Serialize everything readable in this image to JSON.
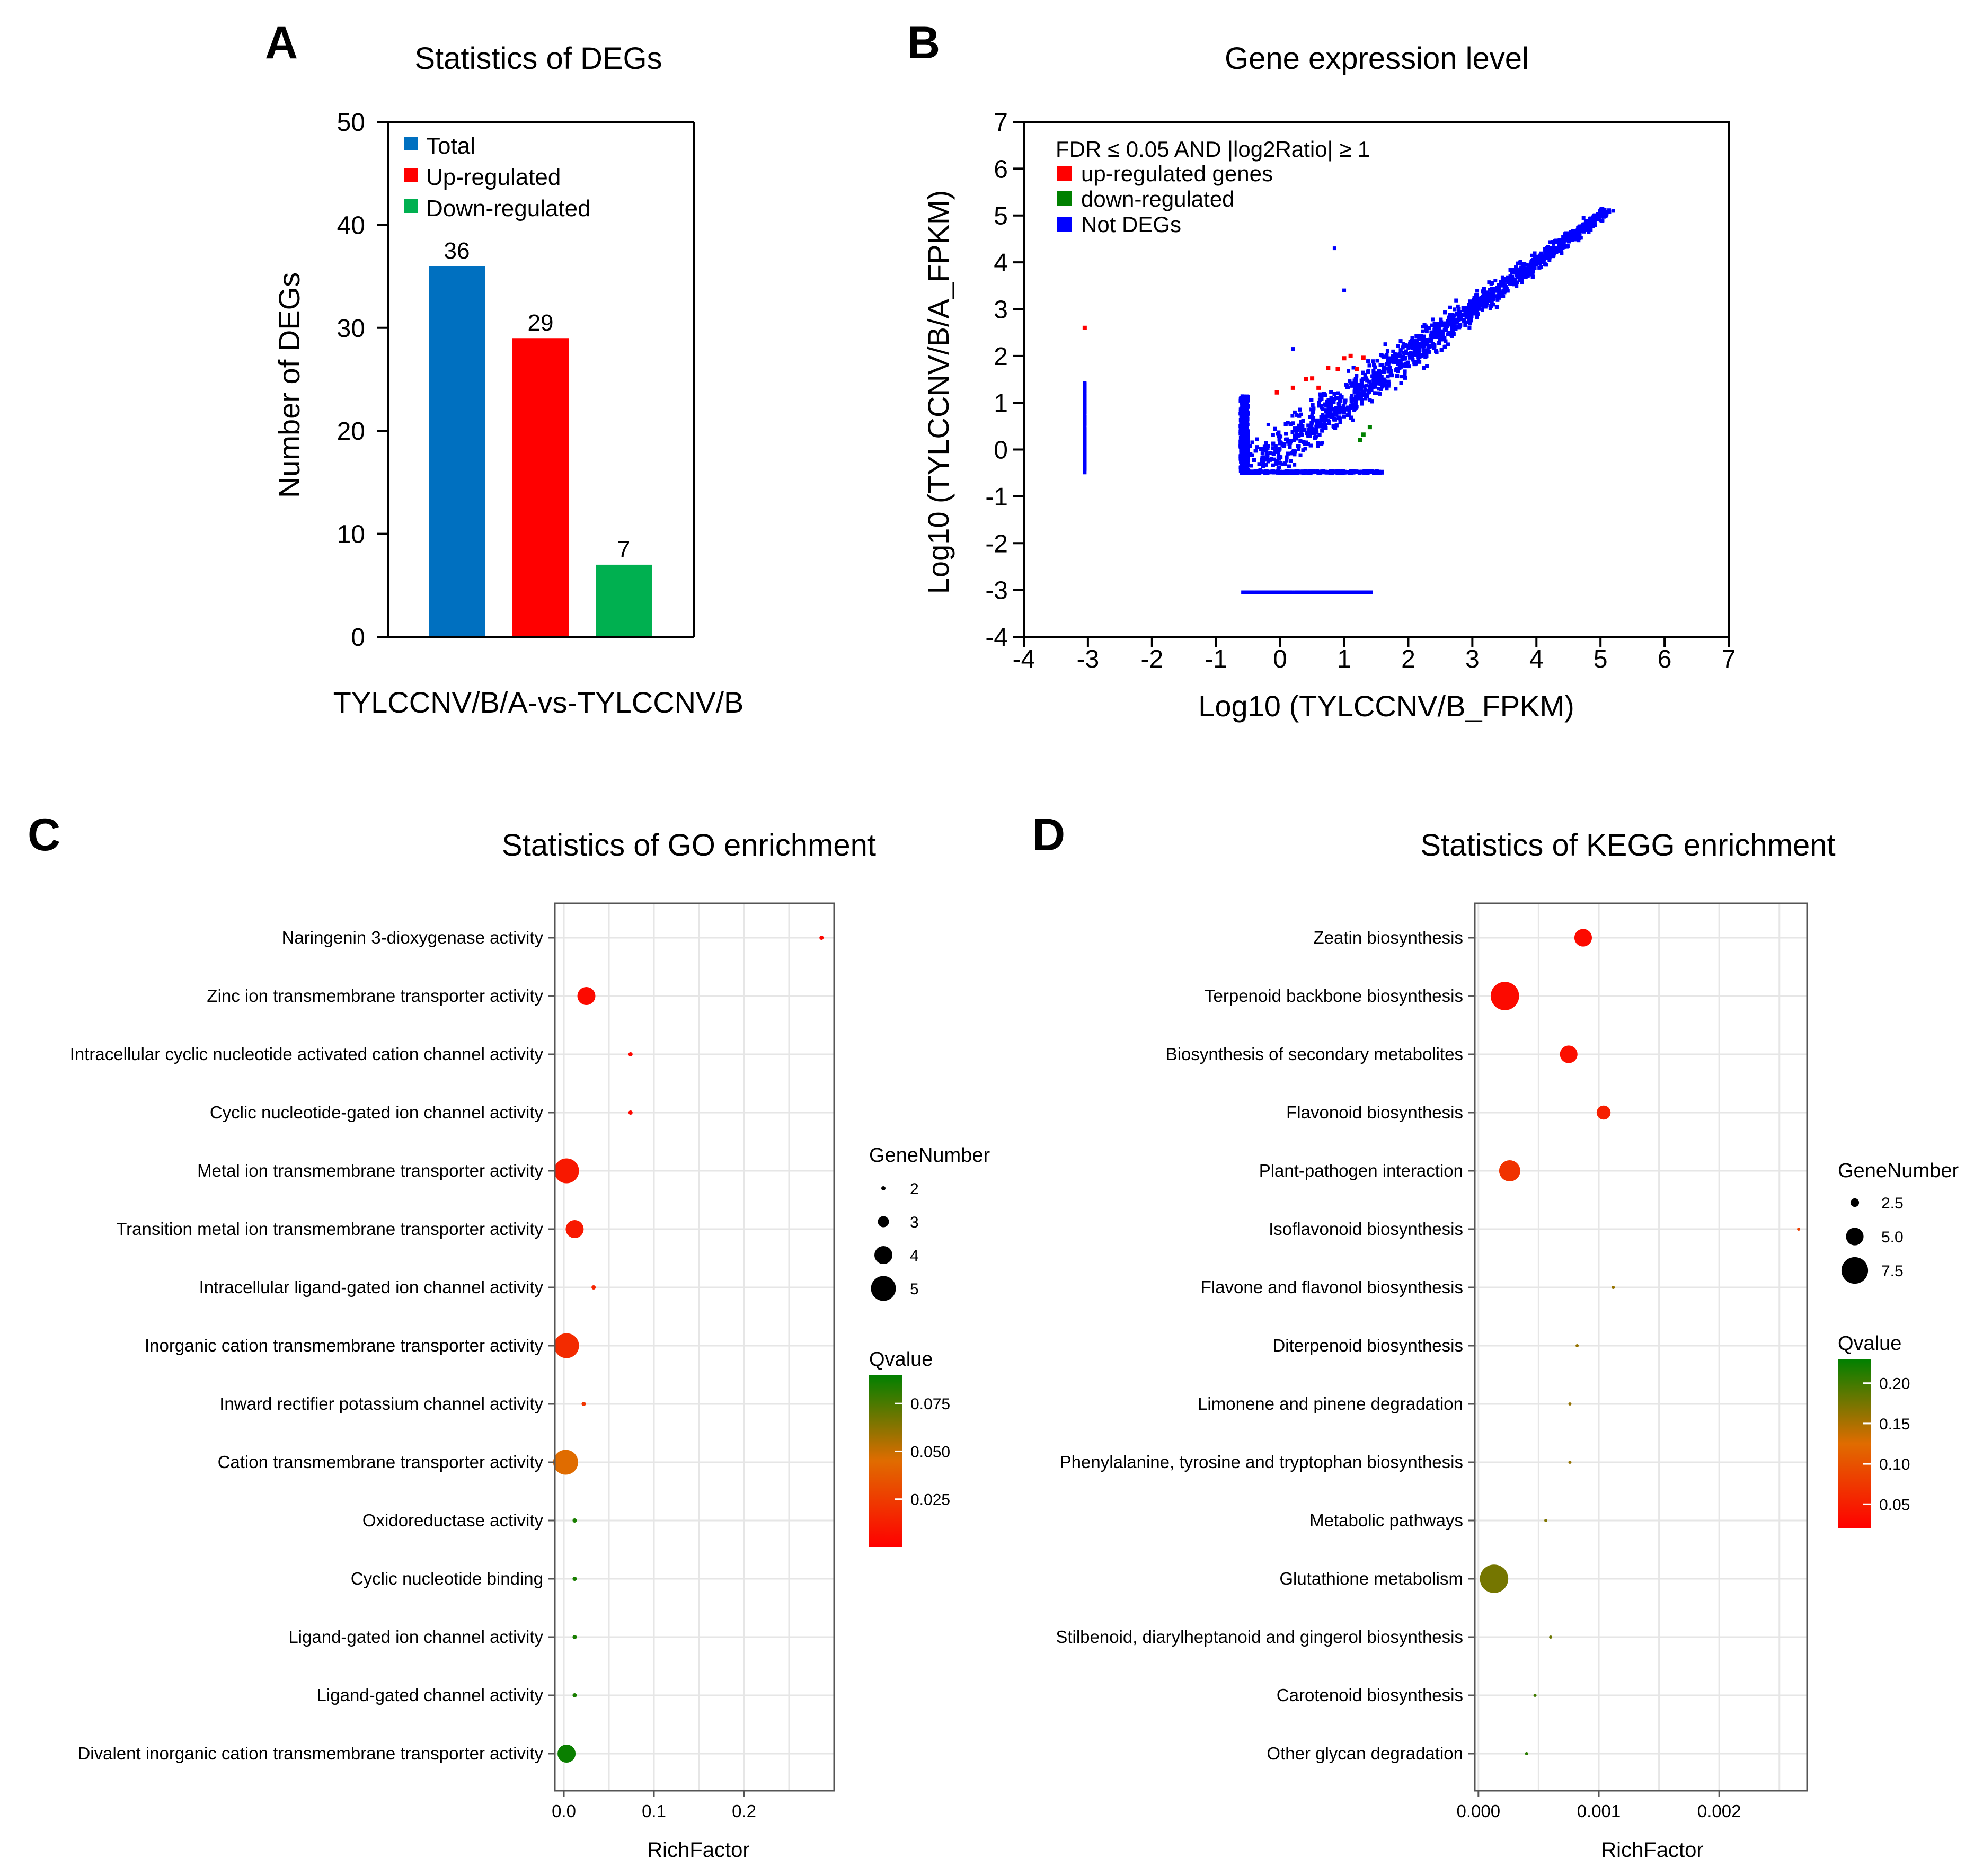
{
  "panels": {
    "a": {
      "letter": "A",
      "title": "Statistics of DEGs",
      "legend": {
        "total": "Total",
        "up": "Up-regulated",
        "down": "Down-regulated"
      }
    },
    "b": {
      "letter": "B",
      "title": "Gene expression level",
      "legend": {
        "header": "FDR ≤ 0.05 AND |log2Ratio| ≥ 1",
        "up": "up-regulated genes",
        "down": "down-regulated",
        "not": "Not DEGs"
      }
    },
    "c": {
      "letter": "C",
      "title": "Statistics of GO enrichment",
      "legend": {
        "size_title": "GeneNumber",
        "color_title": "Qvalue"
      }
    },
    "d": {
      "letter": "D",
      "title": "Statistics of KEGG enrichment",
      "legend": {
        "size_title": "GeneNumber",
        "color_title": "Qvalue"
      }
    }
  },
  "colors": {
    "total": "#0070c0",
    "up": "#ff0000",
    "down": "#00b050",
    "scatter_up": "#ff0000",
    "scatter_down": "#008000",
    "scatter_not": "#0000ff",
    "q_low": "#ff0000",
    "q_mid": "#e06c00",
    "q_high": "#008000",
    "grid": "#e6e6e6"
  },
  "chart_data": [
    {
      "id": "a",
      "type": "bar",
      "title": "Statistics of DEGs",
      "xlabel": "TYLCCNV/B/A-vs-TYLCCNV/B",
      "ylabel": "Number of DEGs",
      "categories": [
        "Total",
        "Up-regulated",
        "Down-regulated"
      ],
      "values": [
        36,
        29,
        7
      ],
      "value_labels": [
        "36",
        "29",
        "7"
      ],
      "ylim": [
        0,
        50
      ],
      "yticks": [
        "0",
        "10",
        "20",
        "30",
        "40",
        "50"
      ],
      "legend_position": "top-left",
      "grid": false
    },
    {
      "id": "b",
      "type": "scatter",
      "title": "Gene expression level",
      "xlabel": "Log10 (TYLCCNV/B_FPKM)",
      "ylabel": "Log10 (TYLCCNV/B/A_FPKM)",
      "xlim": [
        -4,
        7
      ],
      "ylim": [
        -4,
        7
      ],
      "xticks": [
        "-4",
        "-3",
        "-2",
        "-1",
        "0",
        "1",
        "2",
        "3",
        "4",
        "5",
        "6",
        "7"
      ],
      "yticks": [
        "7",
        "6",
        "5",
        "4",
        "3",
        "2",
        "1",
        "0",
        "-1",
        "-2",
        "-3",
        "-4"
      ],
      "legend_position": "top-left",
      "grid": false,
      "series": [
        {
          "name": "up-regulated genes",
          "points": [
            [
              -3.05,
              2.6
            ],
            [
              -0.05,
              1.22
            ],
            [
              0.4,
              1.5
            ],
            [
              0.6,
              1.32
            ],
            [
              0.5,
              1.52
            ],
            [
              0.75,
              1.74
            ],
            [
              1.0,
              1.95
            ],
            [
              1.2,
              1.72
            ],
            [
              0.9,
              1.72
            ],
            [
              1.1,
              2.0
            ],
            [
              1.3,
              1.96
            ],
            [
              0.2,
              1.32
            ]
          ]
        },
        {
          "name": "down-regulated",
          "points": [
            [
              1.25,
              0.2
            ],
            [
              1.3,
              0.32
            ],
            [
              1.4,
              0.48
            ]
          ]
        },
        {
          "name": "Not DEGs",
          "description": "dense cloud along the diagonal from about (-0.6, -0.5) to (5.2, 5.1); vertical strips at x = -3.05 and x = -0.6; horizontal line at y = -3.05 from x = -0.6 to 1.5; a few outliers near (0.85, 4.3), (1.0, 3.4), (0.2, 2.15)",
          "points": [
            [
              0.85,
              4.3
            ],
            [
              1.0,
              3.4
            ],
            [
              0.2,
              2.15
            ],
            [
              5.2,
              5.1
            ],
            [
              4.9,
              4.95
            ]
          ]
        }
      ]
    },
    {
      "id": "c",
      "type": "scatter",
      "subtype": "bubble",
      "title": "Statistics of GO enrichment",
      "xlabel": "RichFactor",
      "ylabel": "",
      "xlim": [
        -0.01,
        0.3
      ],
      "xticks": [
        "0.0",
        "0.1",
        "0.2"
      ],
      "xtick_values": [
        0,
        0.1,
        0.2
      ],
      "grid": true,
      "legend_position": "right",
      "size_legend": {
        "title": "GeneNumber",
        "values": [
          2,
          3,
          4,
          5
        ],
        "labels": [
          "2",
          "3",
          "4",
          "5"
        ]
      },
      "color_legend": {
        "title": "Qvalue",
        "range": [
          0.0,
          0.09
        ],
        "ticks": [
          0.025,
          0.05,
          0.075
        ],
        "labels": [
          "0.025",
          "0.050",
          "0.075"
        ]
      },
      "terms": [
        "Naringenin 3-dioxygenase activity",
        "Zinc ion transmembrane transporter activity",
        "Intracellular cyclic nucleotide activated cation channel activity",
        "Cyclic nucleotide-gated ion channel activity",
        "Metal ion transmembrane transporter activity",
        "Transition metal ion transmembrane transporter activity",
        "Intracellular ligand-gated ion channel activity",
        "Inorganic cation transmembrane transporter activity",
        "Inward rectifier potassium channel activity",
        "Cation transmembrane transporter activity",
        "Oxidoreductase activity",
        "Cyclic nucleotide binding",
        "Ligand-gated ion channel activity",
        "Ligand-gated channel activity",
        "Divalent inorganic cation transmembrane transporter activity"
      ],
      "rich_factor": [
        0.286,
        0.025,
        0.074,
        0.074,
        0.003,
        0.012,
        0.033,
        0.003,
        0.022,
        0.002,
        0.012,
        0.012,
        0.012,
        0.012,
        0.003
      ],
      "gene_number": [
        2,
        4,
        2,
        2,
        5,
        4,
        2,
        5,
        2,
        5,
        2,
        2,
        2,
        2,
        4
      ],
      "qvalue": [
        0.003,
        0.004,
        0.003,
        0.003,
        0.01,
        0.01,
        0.015,
        0.018,
        0.022,
        0.045,
        0.085,
        0.085,
        0.085,
        0.085,
        0.088
      ]
    },
    {
      "id": "d",
      "type": "scatter",
      "subtype": "bubble",
      "title": "Statistics of KEGG enrichment",
      "xlabel": "RichFactor",
      "ylabel": "",
      "xlim": [
        -3e-05,
        0.00273
      ],
      "xticks": [
        "0.000",
        "0.001",
        "0.002"
      ],
      "xtick_values": [
        0,
        0.001,
        0.002
      ],
      "grid": true,
      "legend_position": "right",
      "size_legend": {
        "title": "GeneNumber",
        "values": [
          2.5,
          5.0,
          7.5
        ],
        "labels": [
          "2.5",
          "5.0",
          "7.5"
        ]
      },
      "color_legend": {
        "title": "Qvalue",
        "range": [
          0.02,
          0.23
        ],
        "ticks": [
          0.05,
          0.1,
          0.15,
          0.2
        ],
        "labels": [
          "0.05",
          "0.10",
          "0.15",
          "0.20"
        ]
      },
      "terms": [
        "Zeatin biosynthesis",
        "Terpenoid backbone biosynthesis",
        "Biosynthesis of secondary metabolites",
        "Flavonoid biosynthesis",
        "Plant-pathogen interaction",
        "Isoflavonoid biosynthesis",
        "Flavone and flavonol biosynthesis",
        "Diterpenoid biosynthesis",
        "Limonene and pinene degradation",
        "Phenylalanine, tyrosine and tryptophan biosynthesis",
        "Metabolic pathways",
        "Glutathione metabolism",
        "Stilbenoid, diarylheptanoid and gingerol biosynthesis",
        "Carotenoid biosynthesis",
        "Other glycan degradation"
      ],
      "rich_factor": [
        0.00087,
        0.00022,
        0.00075,
        0.00104,
        0.00026,
        0.00266,
        0.00112,
        0.00082,
        0.00076,
        0.00076,
        0.00056,
        0.00013,
        0.0006,
        0.00047,
        0.0004
      ],
      "gene_number": [
        5,
        8,
        5,
        4,
        6,
        1,
        1,
        1,
        1,
        1,
        1,
        8,
        1,
        1,
        1
      ],
      "qvalue": [
        0.03,
        0.03,
        0.035,
        0.05,
        0.07,
        0.08,
        0.16,
        0.16,
        0.16,
        0.16,
        0.17,
        0.175,
        0.18,
        0.2,
        0.21
      ]
    }
  ]
}
